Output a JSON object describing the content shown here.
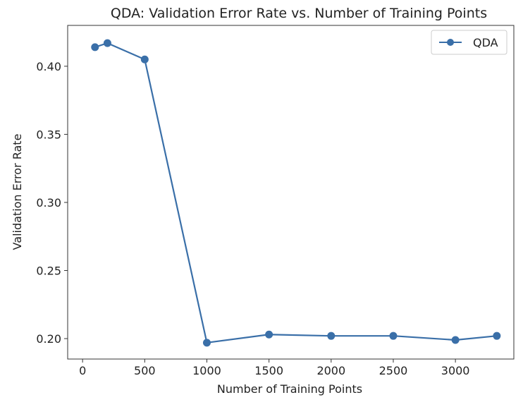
{
  "chart_data": {
    "type": "line",
    "title": "QDA: Validation Error Rate vs. Number of Training Points",
    "xlabel": "Number of Training Points",
    "ylabel": "Validation Error Rate",
    "xlim": [
      -120,
      3470
    ],
    "ylim": [
      0.185,
      0.43
    ],
    "xticks": [
      0,
      500,
      1000,
      1500,
      2000,
      2500,
      3000
    ],
    "xtick_labels": [
      "0",
      "500",
      "1000",
      "1500",
      "2000",
      "2500",
      "3000"
    ],
    "yticks": [
      0.2,
      0.25,
      0.3,
      0.35,
      0.4
    ],
    "ytick_labels": [
      "0.20",
      "0.25",
      "0.30",
      "0.35",
      "0.40"
    ],
    "grid": false,
    "legend_position": "upper right",
    "series": [
      {
        "name": "QDA",
        "color": "#3a6fa8",
        "marker": "circle",
        "x": [
          100,
          200,
          500,
          1000,
          1500,
          2000,
          2500,
          3000,
          3333
        ],
        "y": [
          0.414,
          0.417,
          0.405,
          0.197,
          0.203,
          0.202,
          0.202,
          0.199,
          0.202
        ]
      }
    ]
  }
}
